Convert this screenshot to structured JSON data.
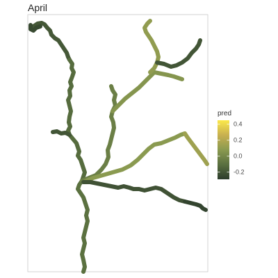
{
  "chart_data": {
    "type": "map",
    "title": "April",
    "legend": {
      "title": "pred",
      "ticks": [
        "0.4",
        "0.2",
        "0.0",
        "-0.2"
      ],
      "tick_values": [
        0.4,
        0.2,
        0.0,
        -0.2
      ],
      "range": [
        -0.29,
        0.45
      ],
      "placement": "right",
      "gradient_colors": [
        "#2c3c2c",
        "#5a7040",
        "#8a9a50",
        "#c8b050",
        "#fce94a"
      ]
    },
    "grid": false,
    "background": "#ffffff",
    "panel_border": "#c8c8c8",
    "segments": [
      {
        "id": "upper-main-stem",
        "pred": -0.19
      },
      {
        "id": "main-stem",
        "pred": -0.12
      },
      {
        "id": "lower-main-stem",
        "pred": -0.1
      },
      {
        "id": "headwater-nw",
        "pred": -0.24
      },
      {
        "id": "tributary-upper-trunk",
        "pred": -0.04
      },
      {
        "id": "tributary-upper-east",
        "pred": 0.06
      },
      {
        "id": "tributary-upper-top",
        "pred": 0.1
      },
      {
        "id": "tributary-upper-ne-tip",
        "pred": -0.2
      },
      {
        "id": "tributary-middle-main",
        "pred": 0.08
      },
      {
        "id": "tributary-middle-tip",
        "pred": 0.14
      },
      {
        "id": "tributary-lower-east",
        "pred": -0.21
      },
      {
        "id": "tributary-lower-tip",
        "pred": -0.26
      },
      {
        "id": "small-west-branch",
        "pred": -0.2
      }
    ]
  }
}
